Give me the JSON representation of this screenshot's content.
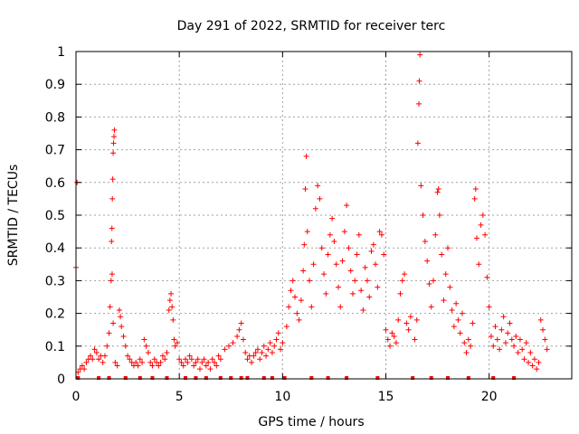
{
  "chart_data": {
    "type": "scatter",
    "title": "Day 291 of 2022, SRMTID for receiver terc",
    "xlabel": "GPS time / hours",
    "ylabel": "SRMTID / TECUs",
    "xlim": [
      0,
      24
    ],
    "ylim": [
      0,
      1
    ],
    "xticks": [
      0,
      5,
      10,
      15,
      20
    ],
    "yticks": [
      0,
      0.1,
      0.2,
      0.3,
      0.4,
      0.5,
      0.6,
      0.7,
      0.8,
      0.9,
      1
    ],
    "grid": true,
    "marker": "+",
    "color": "#ff0000",
    "series": [
      {
        "name": "SRMTID",
        "points": [
          [
            0.0,
            0.34
          ],
          [
            0.05,
            0.6
          ],
          [
            0.1,
            0.02
          ],
          [
            0.2,
            0.03
          ],
          [
            0.3,
            0.04
          ],
          [
            0.4,
            0.03
          ],
          [
            0.5,
            0.05
          ],
          [
            0.6,
            0.06
          ],
          [
            0.7,
            0.07
          ],
          [
            0.8,
            0.06
          ],
          [
            0.9,
            0.09
          ],
          [
            1.0,
            0.08
          ],
          [
            1.1,
            0.06
          ],
          [
            1.2,
            0.07
          ],
          [
            1.3,
            0.05
          ],
          [
            1.4,
            0.07
          ],
          [
            1.5,
            0.1
          ],
          [
            1.6,
            0.14
          ],
          [
            1.65,
            0.22
          ],
          [
            1.7,
            0.3
          ],
          [
            1.72,
            0.42
          ],
          [
            1.74,
            0.46
          ],
          [
            1.76,
            0.55
          ],
          [
            1.78,
            0.61
          ],
          [
            1.8,
            0.69
          ],
          [
            1.82,
            0.72
          ],
          [
            1.84,
            0.74
          ],
          [
            1.86,
            0.76
          ],
          [
            1.75,
            0.32
          ],
          [
            1.8,
            0.17
          ],
          [
            1.9,
            0.05
          ],
          [
            2.0,
            0.04
          ],
          [
            2.1,
            0.21
          ],
          [
            2.15,
            0.19
          ],
          [
            2.2,
            0.16
          ],
          [
            2.3,
            0.13
          ],
          [
            2.4,
            0.1
          ],
          [
            2.5,
            0.07
          ],
          [
            2.6,
            0.06
          ],
          [
            2.7,
            0.05
          ],
          [
            2.8,
            0.04
          ],
          [
            2.9,
            0.05
          ],
          [
            3.0,
            0.04
          ],
          [
            3.1,
            0.06
          ],
          [
            3.2,
            0.05
          ],
          [
            3.3,
            0.12
          ],
          [
            3.4,
            0.1
          ],
          [
            3.5,
            0.08
          ],
          [
            3.6,
            0.05
          ],
          [
            3.7,
            0.04
          ],
          [
            3.8,
            0.06
          ],
          [
            3.9,
            0.05
          ],
          [
            4.0,
            0.04
          ],
          [
            4.1,
            0.05
          ],
          [
            4.2,
            0.07
          ],
          [
            4.3,
            0.06
          ],
          [
            4.4,
            0.08
          ],
          [
            4.5,
            0.21
          ],
          [
            4.55,
            0.24
          ],
          [
            4.6,
            0.26
          ],
          [
            4.65,
            0.22
          ],
          [
            4.7,
            0.18
          ],
          [
            4.75,
            0.12
          ],
          [
            4.8,
            0.1
          ],
          [
            4.9,
            0.11
          ],
          [
            5.0,
            0.06
          ],
          [
            5.1,
            0.05
          ],
          [
            5.2,
            0.04
          ],
          [
            5.3,
            0.06
          ],
          [
            5.4,
            0.05
          ],
          [
            5.5,
            0.07
          ],
          [
            5.6,
            0.06
          ],
          [
            5.7,
            0.04
          ],
          [
            5.8,
            0.05
          ],
          [
            5.9,
            0.06
          ],
          [
            6.0,
            0.03
          ],
          [
            6.1,
            0.05
          ],
          [
            6.2,
            0.06
          ],
          [
            6.3,
            0.04
          ],
          [
            6.4,
            0.05
          ],
          [
            6.5,
            0.03
          ],
          [
            6.6,
            0.06
          ],
          [
            6.7,
            0.05
          ],
          [
            6.8,
            0.04
          ],
          [
            6.9,
            0.07
          ],
          [
            7.0,
            0.06
          ],
          [
            7.2,
            0.09
          ],
          [
            7.4,
            0.1
          ],
          [
            7.6,
            0.11
          ],
          [
            7.8,
            0.13
          ],
          [
            7.9,
            0.15
          ],
          [
            8.0,
            0.17
          ],
          [
            8.1,
            0.12
          ],
          [
            8.2,
            0.08
          ],
          [
            8.3,
            0.06
          ],
          [
            8.4,
            0.07
          ],
          [
            8.5,
            0.05
          ],
          [
            8.6,
            0.07
          ],
          [
            8.7,
            0.08
          ],
          [
            8.8,
            0.09
          ],
          [
            8.9,
            0.06
          ],
          [
            9.0,
            0.08
          ],
          [
            9.1,
            0.1
          ],
          [
            9.2,
            0.07
          ],
          [
            9.3,
            0.09
          ],
          [
            9.4,
            0.11
          ],
          [
            9.5,
            0.08
          ],
          [
            9.6,
            0.1
          ],
          [
            9.7,
            0.12
          ],
          [
            9.8,
            0.14
          ],
          [
            9.9,
            0.09
          ],
          [
            10.0,
            0.11
          ],
          [
            10.2,
            0.16
          ],
          [
            10.3,
            0.22
          ],
          [
            10.4,
            0.27
          ],
          [
            10.5,
            0.3
          ],
          [
            10.6,
            0.25
          ],
          [
            10.7,
            0.2
          ],
          [
            10.8,
            0.18
          ],
          [
            10.9,
            0.24
          ],
          [
            11.0,
            0.33
          ],
          [
            11.05,
            0.41
          ],
          [
            11.1,
            0.58
          ],
          [
            11.15,
            0.68
          ],
          [
            11.2,
            0.45
          ],
          [
            11.3,
            0.3
          ],
          [
            11.4,
            0.22
          ],
          [
            11.5,
            0.35
          ],
          [
            11.6,
            0.52
          ],
          [
            11.7,
            0.59
          ],
          [
            11.8,
            0.55
          ],
          [
            11.9,
            0.4
          ],
          [
            12.0,
            0.32
          ],
          [
            12.1,
            0.26
          ],
          [
            12.2,
            0.38
          ],
          [
            12.3,
            0.44
          ],
          [
            12.4,
            0.49
          ],
          [
            12.5,
            0.42
          ],
          [
            12.6,
            0.35
          ],
          [
            12.7,
            0.28
          ],
          [
            12.8,
            0.22
          ],
          [
            12.9,
            0.36
          ],
          [
            13.0,
            0.45
          ],
          [
            13.1,
            0.53
          ],
          [
            13.2,
            0.4
          ],
          [
            13.3,
            0.33
          ],
          [
            13.4,
            0.26
          ],
          [
            13.5,
            0.3
          ],
          [
            13.6,
            0.38
          ],
          [
            13.7,
            0.44
          ],
          [
            13.8,
            0.27
          ],
          [
            13.9,
            0.21
          ],
          [
            14.0,
            0.34
          ],
          [
            14.1,
            0.3
          ],
          [
            14.2,
            0.25
          ],
          [
            14.3,
            0.39
          ],
          [
            14.4,
            0.41
          ],
          [
            14.5,
            0.35
          ],
          [
            14.6,
            0.28
          ],
          [
            14.7,
            0.45
          ],
          [
            14.8,
            0.44
          ],
          [
            14.9,
            0.38
          ],
          [
            15.0,
            0.15
          ],
          [
            15.1,
            0.12
          ],
          [
            15.2,
            0.1
          ],
          [
            15.3,
            0.14
          ],
          [
            15.4,
            0.13
          ],
          [
            15.5,
            0.11
          ],
          [
            15.6,
            0.18
          ],
          [
            15.7,
            0.26
          ],
          [
            15.8,
            0.3
          ],
          [
            15.9,
            0.32
          ],
          [
            16.0,
            0.17
          ],
          [
            16.1,
            0.15
          ],
          [
            16.2,
            0.19
          ],
          [
            16.4,
            0.12
          ],
          [
            16.5,
            0.18
          ],
          [
            16.55,
            0.72
          ],
          [
            16.6,
            0.84
          ],
          [
            16.62,
            0.91
          ],
          [
            16.65,
            0.99
          ],
          [
            16.7,
            0.59
          ],
          [
            16.8,
            0.5
          ],
          [
            16.9,
            0.42
          ],
          [
            17.0,
            0.36
          ],
          [
            17.1,
            0.29
          ],
          [
            17.2,
            0.22
          ],
          [
            17.3,
            0.3
          ],
          [
            17.4,
            0.44
          ],
          [
            17.5,
            0.57
          ],
          [
            17.55,
            0.58
          ],
          [
            17.6,
            0.5
          ],
          [
            17.7,
            0.38
          ],
          [
            17.8,
            0.24
          ],
          [
            17.9,
            0.32
          ],
          [
            18.0,
            0.4
          ],
          [
            18.1,
            0.28
          ],
          [
            18.2,
            0.21
          ],
          [
            18.3,
            0.16
          ],
          [
            18.4,
            0.23
          ],
          [
            18.5,
            0.18
          ],
          [
            18.6,
            0.14
          ],
          [
            18.7,
            0.2
          ],
          [
            18.8,
            0.11
          ],
          [
            18.9,
            0.08
          ],
          [
            19.0,
            0.12
          ],
          [
            19.1,
            0.1
          ],
          [
            19.2,
            0.17
          ],
          [
            19.3,
            0.55
          ],
          [
            19.35,
            0.58
          ],
          [
            19.4,
            0.43
          ],
          [
            19.5,
            0.35
          ],
          [
            19.6,
            0.47
          ],
          [
            19.7,
            0.5
          ],
          [
            19.8,
            0.44
          ],
          [
            19.9,
            0.31
          ],
          [
            20.0,
            0.22
          ],
          [
            20.1,
            0.13
          ],
          [
            20.2,
            0.1
          ],
          [
            20.3,
            0.16
          ],
          [
            20.4,
            0.12
          ],
          [
            20.5,
            0.09
          ],
          [
            20.6,
            0.15
          ],
          [
            20.7,
            0.19
          ],
          [
            20.8,
            0.11
          ],
          [
            20.9,
            0.14
          ],
          [
            21.0,
            0.17
          ],
          [
            21.1,
            0.12
          ],
          [
            21.2,
            0.1
          ],
          [
            21.3,
            0.13
          ],
          [
            21.4,
            0.08
          ],
          [
            21.5,
            0.12
          ],
          [
            21.6,
            0.09
          ],
          [
            21.7,
            0.06
          ],
          [
            21.8,
            0.11
          ],
          [
            21.9,
            0.05
          ],
          [
            22.0,
            0.08
          ],
          [
            22.1,
            0.04
          ],
          [
            22.2,
            0.06
          ],
          [
            22.3,
            0.03
          ],
          [
            22.4,
            0.05
          ],
          [
            22.5,
            0.18
          ],
          [
            22.6,
            0.15
          ],
          [
            22.7,
            0.12
          ],
          [
            22.8,
            0.09
          ]
        ]
      }
    ],
    "axis_markers": [
      0.1,
      1.1,
      1.6,
      2.4,
      3.1,
      3.7,
      4.4,
      5.3,
      5.8,
      6.3,
      7.0,
      7.5,
      8.0,
      8.3,
      9.1,
      9.5,
      10.1,
      11.4,
      12.2,
      13.1,
      14.6,
      16.3,
      17.2,
      18.0,
      19.0,
      20.2,
      21.2
    ]
  }
}
